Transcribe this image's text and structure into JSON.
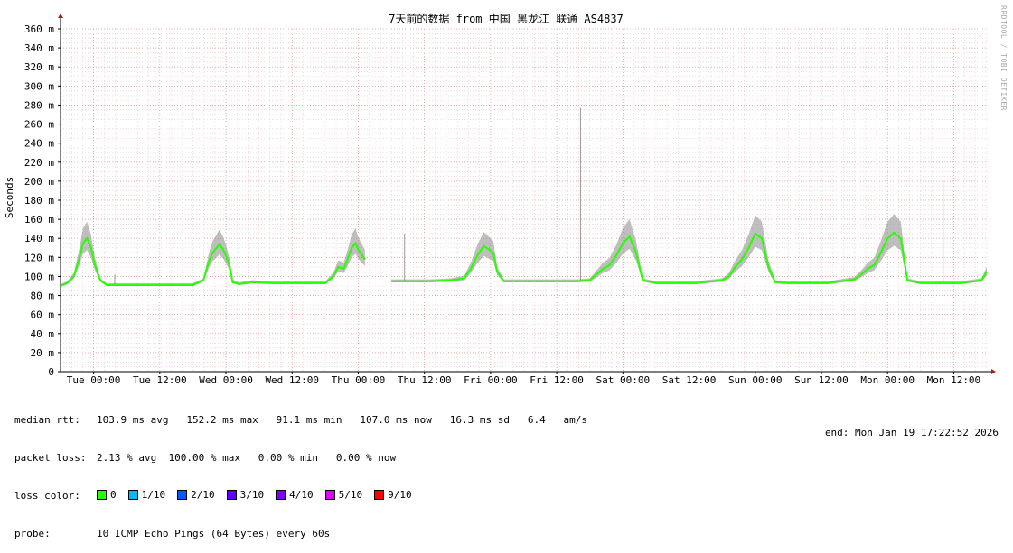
{
  "title": "7天前的数据 from 中国 黑龙江 联通 AS4837",
  "watermark": "RRDTOOL / TOBI OETIKER",
  "chart_data": {
    "type": "line",
    "title": "7天前的数据 from 中国 黑龙江 联通 AS4837",
    "ylabel": "Seconds",
    "xlabel": "",
    "ylim": [
      0,
      360
    ],
    "xlim": [
      0,
      7
    ],
    "yticks": [
      0,
      20,
      40,
      60,
      80,
      100,
      120,
      140,
      160,
      180,
      200,
      220,
      240,
      260,
      280,
      300,
      320,
      340,
      360
    ],
    "ytick_labels": [
      "0",
      "20 m",
      "40 m",
      "60 m",
      "80 m",
      "100 m",
      "120 m",
      "140 m",
      "160 m",
      "180 m",
      "200 m",
      "220 m",
      "240 m",
      "260 m",
      "280 m",
      "300 m",
      "320 m",
      "340 m",
      "360 m"
    ],
    "xticks": [
      0.25,
      0.75,
      1.25,
      1.75,
      2.25,
      2.75,
      3.25,
      3.75,
      4.25,
      4.75,
      5.25,
      5.75,
      6.25,
      6.75
    ],
    "xtick_labels": [
      "Tue 00:00",
      "Tue 12:00",
      "Wed 00:00",
      "Wed 12:00",
      "Thu 00:00",
      "Thu 12:00",
      "Fri 00:00",
      "Fri 12:00",
      "Sat 00:00",
      "Sat 12:00",
      "Sun 00:00",
      "Sun 12:00",
      "Mon 00:00",
      "Mon 12:00"
    ],
    "grid": true,
    "series": [
      {
        "name": "median rtt",
        "x": [
          0.0,
          0.05,
          0.1,
          0.14,
          0.17,
          0.2,
          0.23,
          0.26,
          0.3,
          0.35,
          0.6,
          1.0,
          1.08,
          1.12,
          1.15,
          1.18,
          1.2,
          1.23,
          1.25,
          1.28,
          1.3,
          1.35,
          1.45,
          1.6,
          1.9,
          2.0,
          2.06,
          2.1,
          2.14,
          2.17,
          2.2,
          2.23,
          2.25,
          2.28,
          2.3
        ],
        "y": [
          90,
          93,
          100,
          118,
          135,
          140,
          130,
          112,
          96,
          91,
          91,
          91,
          96,
          115,
          125,
          130,
          134,
          128,
          122,
          110,
          94,
          92,
          94,
          93,
          93,
          93,
          100,
          110,
          108,
          118,
          130,
          135,
          128,
          122,
          118
        ]
      },
      {
        "name": "median rtt",
        "x": [
          2.5,
          2.8,
          2.95,
          3.0,
          3.05,
          3.1,
          3.15,
          3.2,
          3.27,
          3.3,
          3.35,
          3.6,
          3.9,
          4.0,
          4.05,
          4.1,
          4.15,
          4.2,
          4.25,
          4.3,
          4.35,
          4.4,
          4.5,
          4.8,
          5.0,
          5.05,
          5.1,
          5.15,
          5.2,
          5.25,
          5.3,
          5.35,
          5.4,
          5.5,
          5.8,
          6.0,
          6.05,
          6.1,
          6.15,
          6.2,
          6.25,
          6.3,
          6.35,
          6.4,
          6.5,
          6.8,
          6.96,
          7.0
        ],
        "y": [
          95,
          95,
          96,
          97,
          98,
          108,
          122,
          132,
          125,
          105,
          95,
          95,
          95,
          96,
          102,
          108,
          112,
          122,
          135,
          142,
          125,
          96,
          93,
          93,
          96,
          100,
          110,
          118,
          130,
          145,
          140,
          110,
          94,
          93,
          93,
          97,
          102,
          108,
          112,
          125,
          140,
          146,
          140,
          96,
          93,
          93,
          96,
          105
        ]
      }
    ],
    "median_rtt": {
      "avg": "103.9 ms",
      "max": "152.2 ms",
      "min": "91.1 ms",
      "now": "107.0 ms",
      "sd": "16.3 ms",
      "am_s": "6.4"
    },
    "packet_loss": {
      "avg": "2.13 %",
      "max": "100.00 %",
      "min": "0.00 %",
      "now": "0.00 %"
    }
  },
  "legend": {
    "median_label": "median rtt:",
    "median_text": "103.9 ms avg   152.2 ms max   91.1 ms min   107.0 ms now   16.3 ms sd   6.4   am/s",
    "loss_label": "packet loss:",
    "loss_text": "2.13 % avg  100.00 % max   0.00 % min   0.00 % now",
    "color_label": "loss color:",
    "loss_colors": [
      {
        "label": "0",
        "color": "#26ff00"
      },
      {
        "label": "1/10",
        "color": "#00b8ff"
      },
      {
        "label": "2/10",
        "color": "#0059ff"
      },
      {
        "label": "3/10",
        "color": "#5e00ff"
      },
      {
        "label": "4/10",
        "color": "#7e00ff"
      },
      {
        "label": "5/10",
        "color": "#dd00ff"
      },
      {
        "label": "9/10",
        "color": "#ff0000"
      }
    ],
    "probe_label": "probe:",
    "probe_text": "10 ICMP Echo Pings (64 Bytes) every 60s",
    "end_text": "end: Mon Jan 19 17:22:52 2026"
  }
}
